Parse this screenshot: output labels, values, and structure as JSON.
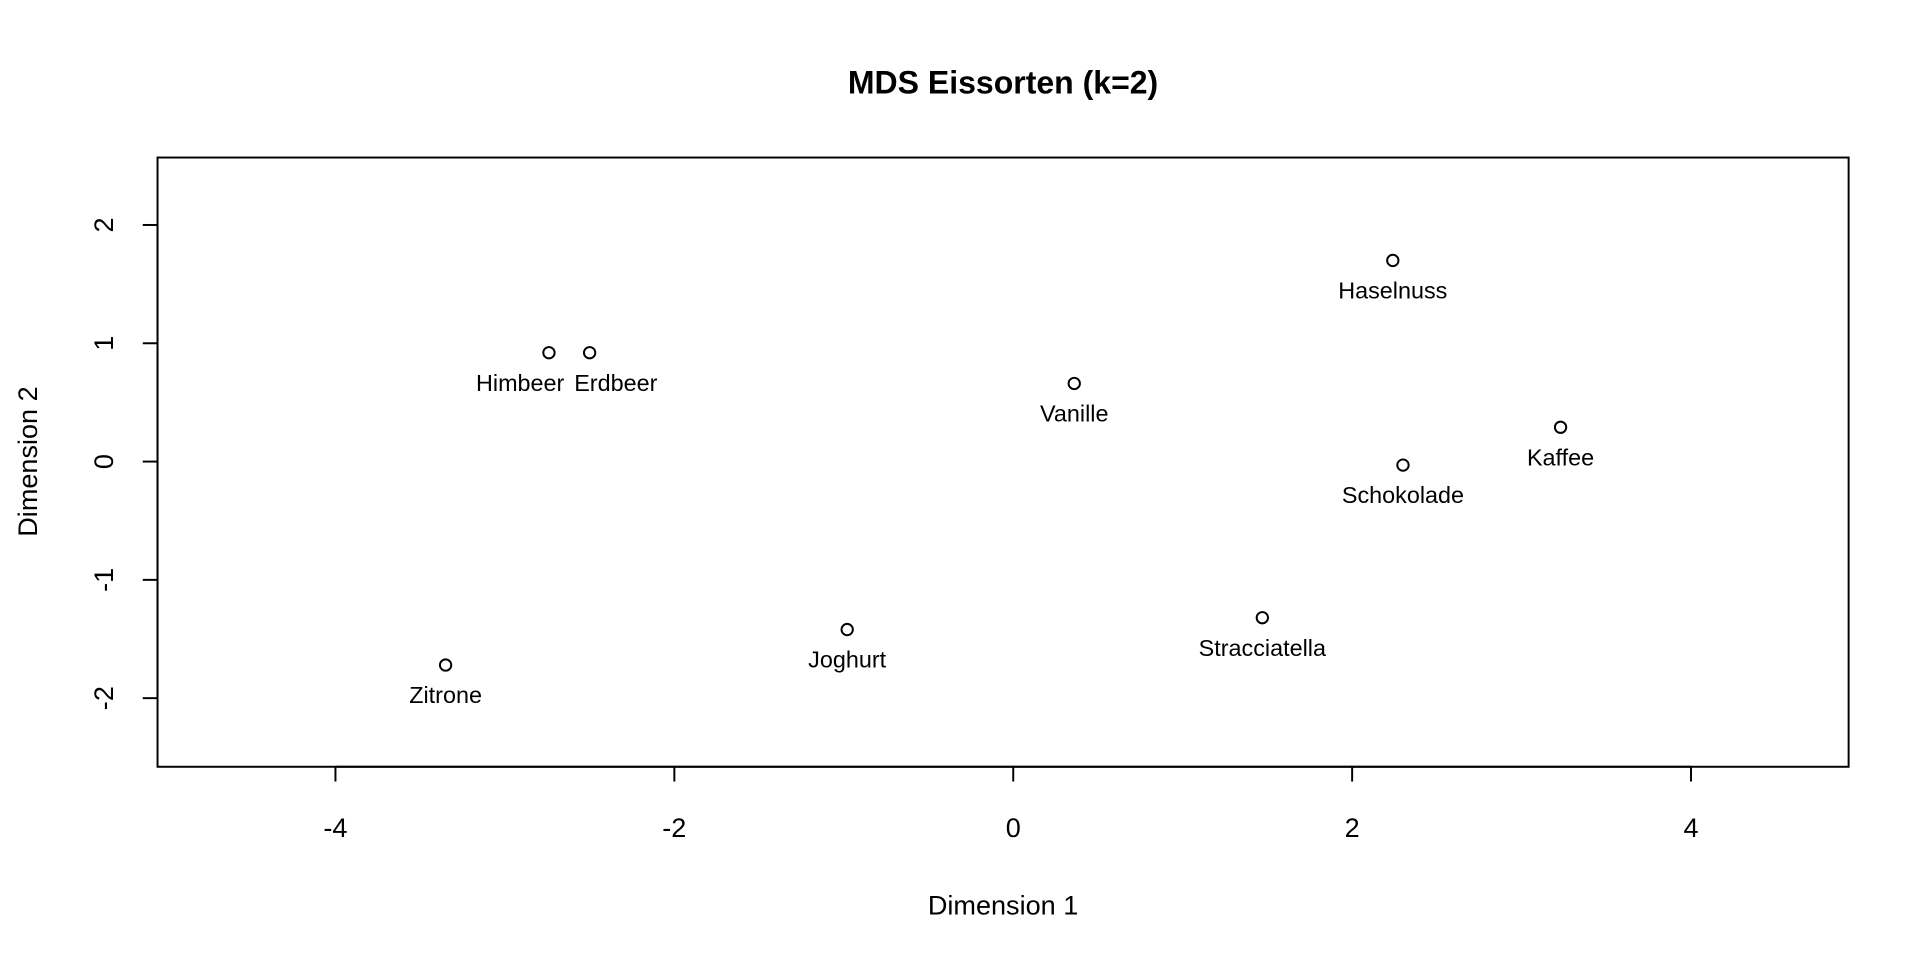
{
  "chart_data": {
    "type": "scatter",
    "title": "MDS Eissorten (k=2)",
    "xlabel": "Dimension 1",
    "ylabel": "Dimension 2",
    "xlim": [
      -5.05,
      4.93
    ],
    "ylim": [
      -2.58,
      2.57
    ],
    "xticks": [
      -4,
      -2,
      0,
      2,
      4
    ],
    "yticks": [
      -2,
      -1,
      0,
      1,
      2
    ],
    "grid": false,
    "marker": "open-circle",
    "points": [
      {
        "label": "Himbeer",
        "x": -2.74,
        "y": 0.92
      },
      {
        "label": "Erdbeer",
        "x": -2.5,
        "y": 0.92
      },
      {
        "label": "Vanille",
        "x": 0.36,
        "y": 0.66
      },
      {
        "label": "Haselnuss",
        "x": 2.24,
        "y": 1.7
      },
      {
        "label": "Kaffee",
        "x": 3.23,
        "y": 0.29
      },
      {
        "label": "Schokolade",
        "x": 2.3,
        "y": -0.03
      },
      {
        "label": "Stracciatella",
        "x": 1.47,
        "y": -1.32
      },
      {
        "label": "Joghurt",
        "x": -0.98,
        "y": -1.42
      },
      {
        "label": "Zitrone",
        "x": -3.35,
        "y": -1.72
      }
    ]
  }
}
